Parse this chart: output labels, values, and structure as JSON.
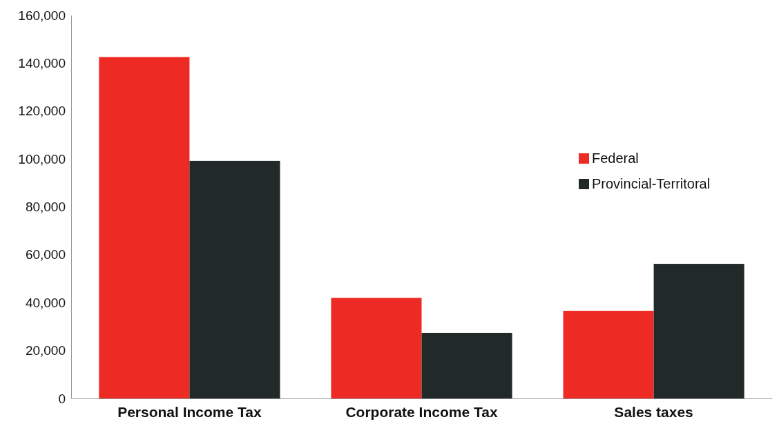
{
  "chart_data": {
    "type": "bar",
    "categories": [
      "Personal Income Tax",
      "Corporate Income Tax",
      "Sales taxes"
    ],
    "series": [
      {
        "name": "Federal",
        "color": "#ee2a24",
        "values": [
          142500,
          42000,
          36600
        ]
      },
      {
        "name": "Provincial-Territoral",
        "color": "#222a29",
        "values": [
          99200,
          27400,
          56200
        ]
      }
    ],
    "ylim": [
      0,
      160000
    ],
    "yticks": [
      {
        "value": 0,
        "label": "0"
      },
      {
        "value": 20000,
        "label": "20,000"
      },
      {
        "value": 40000,
        "label": "40,000"
      },
      {
        "value": 60000,
        "label": "60,000"
      },
      {
        "value": 80000,
        "label": "80,000"
      },
      {
        "value": 100000,
        "label": "100,000"
      },
      {
        "value": 120000,
        "label": "120,000"
      },
      {
        "value": 140000,
        "label": "140,000"
      },
      {
        "value": 160000,
        "label": "160,000"
      }
    ],
    "grid": false,
    "legend": "right"
  }
}
